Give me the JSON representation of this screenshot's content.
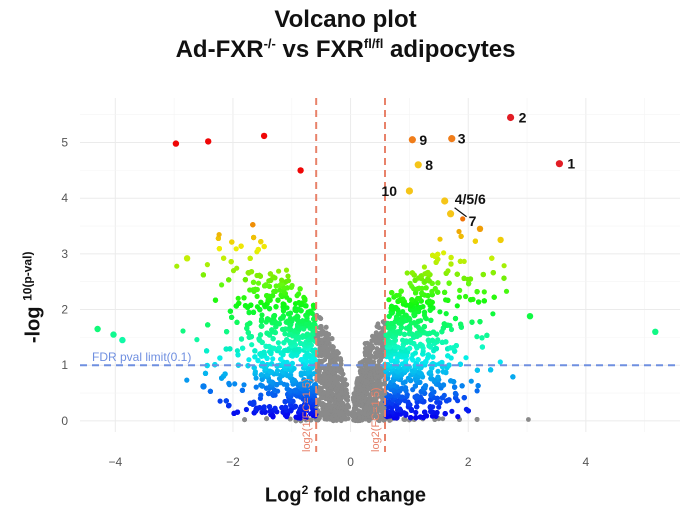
{
  "chart_data": {
    "type": "scatter",
    "title_line1": "Volcano plot",
    "title_prefix": "Ad-FXR",
    "title_sup1": "-/-",
    "title_mid": " vs FXR",
    "title_sup2": "fl/fl",
    "title_suffix": " adipocytes",
    "xlabel_base": "Log",
    "xlabel_sup": "2",
    "xlabel_rest": " fold change",
    "ylabel_base": "-log ",
    "ylabel_sup": "10(p-val)",
    "xlim": [
      -4.6,
      5.6
    ],
    "ylim": [
      -0.2,
      5.8
    ],
    "x_ticks": [
      -4,
      -2,
      0,
      2,
      4
    ],
    "y_ticks": [
      0,
      1,
      2,
      3,
      4,
      5
    ],
    "grid": true,
    "fdr_line": {
      "y": 1.0,
      "label": "FDR pval limit(0.1)",
      "color": "#6f8fe0"
    },
    "fc_lines": [
      {
        "x": -0.585,
        "label": "log2(1/FC=1.5)",
        "color": "#e8826a"
      },
      {
        "x": 0.585,
        "label": "log2(FC=1.5)",
        "color": "#e8826a"
      }
    ],
    "labeled_points": [
      {
        "label": "1",
        "x": 3.55,
        "y": 4.62
      },
      {
        "label": "2",
        "x": 2.72,
        "y": 5.45
      },
      {
        "label": "3",
        "x": 1.72,
        "y": 5.07
      },
      {
        "label": "9",
        "x": 1.05,
        "y": 5.05
      },
      {
        "label": "8",
        "x": 1.15,
        "y": 4.6
      },
      {
        "label": "10",
        "x": 1.0,
        "y": 4.13
      },
      {
        "label": "4/5/6",
        "x": 1.6,
        "y": 3.95
      },
      {
        "label": "7",
        "x": 1.7,
        "y": 3.72
      }
    ],
    "outlier_points": [
      {
        "x": -2.97,
        "y": 4.98
      },
      {
        "x": -2.42,
        "y": 5.02
      },
      {
        "x": -1.47,
        "y": 5.12
      },
      {
        "x": -0.85,
        "y": 4.5
      },
      {
        "x": -2.78,
        "y": 2.92
      },
      {
        "x": -4.3,
        "y": 1.65
      },
      {
        "x": -4.03,
        "y": 1.55
      },
      {
        "x": -3.88,
        "y": 1.45
      },
      {
        "x": 5.18,
        "y": 1.6
      },
      {
        "x": 3.05,
        "y": 1.88
      },
      {
        "x": 2.55,
        "y": 3.25
      },
      {
        "x": 2.2,
        "y": 3.45
      },
      {
        "x": -2.5,
        "y": 0.62
      }
    ],
    "cloud_description_series": "thousands of genes colored by significance (rainbow: blue low to red high); non-significant genes grey"
  }
}
